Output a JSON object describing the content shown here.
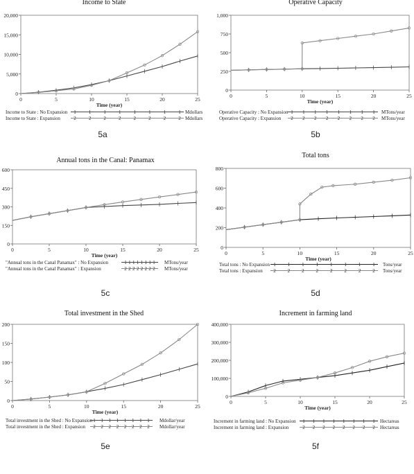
{
  "chart_data": [
    {
      "id": "5a",
      "type": "line",
      "title": "Income to State",
      "caption": "5a",
      "xlabel": "Time (year)",
      "xlim": [
        0,
        25
      ],
      "ylim": [
        0,
        20000
      ],
      "xticks": [
        "0",
        "5",
        "10",
        "15",
        "20",
        "25"
      ],
      "yticks": [
        "0",
        "5,000",
        "10,000",
        "15,000",
        "20,000"
      ],
      "series": [
        {
          "name": "Income to State : No Expansion",
          "unit": "Mdollars",
          "color": "#444444",
          "marker": "1",
          "x": [
            0,
            2.5,
            5,
            7.5,
            10,
            12.5,
            15,
            17.5,
            20,
            22.5,
            25
          ],
          "y": [
            0,
            350,
            850,
            1450,
            2300,
            3300,
            4500,
            5700,
            6900,
            8300,
            9600
          ]
        },
        {
          "name": "Income to State : Expansion",
          "unit": "Mdollars",
          "color": "#888888",
          "marker": "2",
          "x": [
            0,
            2.5,
            5,
            7.5,
            10,
            12.5,
            15,
            17.5,
            20,
            22.5,
            25
          ],
          "y": [
            0,
            300,
            700,
            1150,
            2100,
            3300,
            5300,
            7300,
            9700,
            12600,
            15800
          ]
        }
      ]
    },
    {
      "id": "5b",
      "type": "line",
      "title": "Operative Capacity",
      "caption": "5b",
      "xlabel": "Time (year)",
      "xlim": [
        0,
        25
      ],
      "ylim": [
        0,
        1000
      ],
      "xticks": [
        "0",
        "5",
        "10",
        "15",
        "20",
        "25"
      ],
      "yticks": [
        "0",
        "250",
        "500",
        "750",
        "1,000"
      ],
      "series": [
        {
          "name": "Operative Capacity : No Expansion",
          "unit": "MTons/year",
          "color": "#444444",
          "marker": "1",
          "x": [
            0,
            2.5,
            5,
            7.5,
            10,
            12.5,
            15,
            17.5,
            20,
            22.5,
            25
          ],
          "y": [
            265,
            270,
            275,
            280,
            285,
            288,
            292,
            296,
            300,
            305,
            310
          ]
        },
        {
          "name": "Operative Capacity : Expansion",
          "unit": "MTons/year",
          "color": "#888888",
          "marker": "2",
          "x": [
            0,
            2.5,
            5,
            7.5,
            9.99,
            10,
            12.5,
            15,
            17.5,
            20,
            22.5,
            25
          ],
          "y": [
            265,
            270,
            275,
            280,
            285,
            630,
            660,
            690,
            720,
            750,
            790,
            830
          ]
        }
      ]
    },
    {
      "id": "5c",
      "type": "line",
      "title": "Annual tons in the Canal: Panamax",
      "caption": "5c",
      "xlabel": "Time (year)",
      "xlim": [
        0,
        25
      ],
      "ylim": [
        0,
        600
      ],
      "xticks": [
        "0",
        "5",
        "10",
        "15",
        "20",
        "25"
      ],
      "yticks": [
        "0",
        "150",
        "300",
        "450",
        "600"
      ],
      "series": [
        {
          "name": "\"Annual tons in the Canal Panamax\" : No Expansion",
          "unit": "MTons/year",
          "color": "#444444",
          "marker": "1",
          "x": [
            0,
            2.5,
            5,
            7.5,
            10,
            12.5,
            15,
            17.5,
            20,
            22.5,
            25
          ],
          "y": [
            190,
            220,
            245,
            270,
            295,
            302,
            310,
            315,
            320,
            328,
            335
          ]
        },
        {
          "name": "\"Annual tons in the Canal Panamax\" : Expansion",
          "unit": "MTons/year",
          "color": "#888888",
          "marker": "2",
          "x": [
            0,
            2.5,
            5,
            7.5,
            10,
            12.5,
            15,
            17.5,
            20,
            22.5,
            25
          ],
          "y": [
            190,
            220,
            245,
            270,
            295,
            318,
            340,
            360,
            380,
            400,
            420
          ]
        }
      ]
    },
    {
      "id": "5d",
      "type": "line",
      "title": "Total tons",
      "caption": "5d",
      "xlabel": "Time (year)",
      "xlim": [
        0,
        25
      ],
      "ylim": [
        0,
        800
      ],
      "xticks": [
        "0",
        "5",
        "10",
        "15",
        "20",
        "25"
      ],
      "yticks": [
        "0",
        "200",
        "400",
        "600",
        "800"
      ],
      "series": [
        {
          "name": "Total tons : No Expansion",
          "unit": "Tons/year",
          "color": "#222222",
          "marker": "1",
          "x": [
            0,
            2.5,
            5,
            7.5,
            10,
            12.5,
            15,
            17.5,
            20,
            22.5,
            25
          ],
          "y": [
            180,
            205,
            230,
            255,
            280,
            290,
            298,
            305,
            312,
            320,
            328
          ]
        },
        {
          "name": "Total tons : Expansion",
          "unit": "Tons/year",
          "color": "#888888",
          "marker": "2",
          "x": [
            0,
            2.5,
            5,
            7.5,
            9.99,
            10,
            11.5,
            13,
            14.5,
            17.5,
            20,
            22.5,
            25
          ],
          "y": [
            180,
            205,
            230,
            255,
            280,
            440,
            540,
            610,
            625,
            640,
            660,
            680,
            705
          ]
        }
      ]
    },
    {
      "id": "5e",
      "type": "line",
      "title": "Total investment in the Shed",
      "caption": "5e",
      "xlabel": "Time (year)",
      "xlim": [
        0,
        25
      ],
      "ylim": [
        0,
        200
      ],
      "xticks": [
        "0",
        "5",
        "10",
        "15",
        "20",
        "25"
      ],
      "yticks": [
        "0",
        "50",
        "100",
        "150",
        "200"
      ],
      "series": [
        {
          "name": "Total investment in the Shed : No Expansion",
          "unit": "Mdollar/year",
          "color": "#444444",
          "marker": "1",
          "x": [
            0,
            2.5,
            5,
            7.5,
            10,
            12.5,
            15,
            17.5,
            20,
            22.5,
            25
          ],
          "y": [
            0,
            4,
            9,
            15,
            23,
            32,
            42,
            55,
            68,
            82,
            96
          ]
        },
        {
          "name": "Total investment in the Shed : Expansion",
          "unit": "Mdollar/year",
          "color": "#888888",
          "marker": "2",
          "x": [
            0,
            2.5,
            5,
            7.5,
            10,
            12.5,
            15,
            17.5,
            20,
            22.5,
            25
          ],
          "y": [
            0,
            4,
            9,
            15,
            23,
            45,
            70,
            95,
            125,
            160,
            200
          ]
        }
      ]
    },
    {
      "id": "5f",
      "type": "line",
      "title": "Increment in farming land",
      "caption": "5f",
      "xlabel": "Time (year)",
      "xlim": [
        0,
        25
      ],
      "ylim": [
        0,
        400000
      ],
      "xticks": [
        "0",
        "5",
        "10",
        "15",
        "20",
        "25"
      ],
      "yticks": [
        "0",
        "100,000",
        "200,000",
        "300,000",
        "400,000"
      ],
      "series": [
        {
          "name": "Increment in farming land : No Expansion",
          "unit": "Hectareas",
          "color": "#222222",
          "marker": "1",
          "x": [
            0,
            2.5,
            5,
            7.5,
            10,
            12.5,
            15,
            17.5,
            20,
            22.5,
            25
          ],
          "y": [
            0,
            25000,
            60000,
            85000,
            95000,
            105000,
            115000,
            130000,
            145000,
            165000,
            185000
          ]
        },
        {
          "name": "Increment in farming land : Expansion",
          "unit": "Hectareas",
          "color": "#888888",
          "marker": "2",
          "x": [
            0,
            2.5,
            5,
            7.5,
            10,
            12.5,
            15,
            17.5,
            20,
            22.5,
            25
          ],
          "y": [
            0,
            20000,
            45000,
            75000,
            90000,
            105000,
            130000,
            160000,
            195000,
            220000,
            240000
          ]
        }
      ]
    }
  ]
}
